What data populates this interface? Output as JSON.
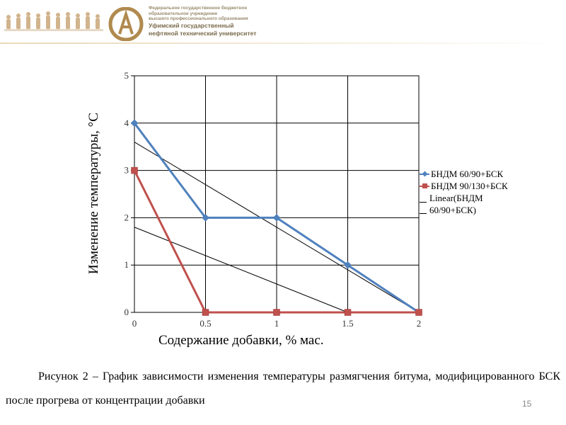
{
  "header": {
    "org_small_lines": [
      "Федеральное государственное бюджетное",
      "образовательное учреждение",
      "высшего профессионального образования"
    ],
    "org_big_lines": [
      "Уфимский государственный",
      "нефтяной технический университет"
    ]
  },
  "chart_data": {
    "type": "line",
    "xlabel": "Содержание добавки, % мас.",
    "ylabel": "Изменение температуры, °С",
    "xlim": [
      0,
      2
    ],
    "ylim": [
      0,
      5
    ],
    "x_ticks": [
      "0",
      "0.5",
      "1",
      "1.5",
      "2"
    ],
    "y_ticks": [
      "0",
      "1",
      "2",
      "3",
      "4",
      "5"
    ],
    "grid": true,
    "legend_position": "right",
    "series": [
      {
        "name": "БНДМ 60/90+БСК",
        "color": "#4f81bd",
        "marker": "diamond",
        "points": [
          [
            0,
            4
          ],
          [
            0.5,
            2
          ],
          [
            1,
            2
          ],
          [
            1.5,
            1
          ],
          [
            2,
            0
          ]
        ]
      },
      {
        "name": "БНДМ 90/130+БСК",
        "color": "#c0504d",
        "marker": "square",
        "points": [
          [
            0,
            3
          ],
          [
            0.5,
            0
          ],
          [
            1,
            0
          ],
          [
            1.5,
            0
          ],
          [
            2,
            0
          ]
        ]
      }
    ],
    "trendlines": [
      {
        "name": "Linear(БНДМ 60/90+БСК)",
        "points": [
          [
            0,
            3.6
          ],
          [
            2,
            0
          ]
        ]
      },
      {
        "name": "",
        "points": [
          [
            0,
            1.8
          ],
          [
            1.5,
            0
          ]
        ]
      }
    ],
    "legend": {
      "linear_label_line1": "Linear(БНДМ",
      "linear_label_line2": "60/90+БСК)"
    }
  },
  "caption": "Рисунок 2 – График зависимости изменения температуры размягчения битума, модифицированного БСК после прогрева от концентрации добавки",
  "page_number": "15"
}
